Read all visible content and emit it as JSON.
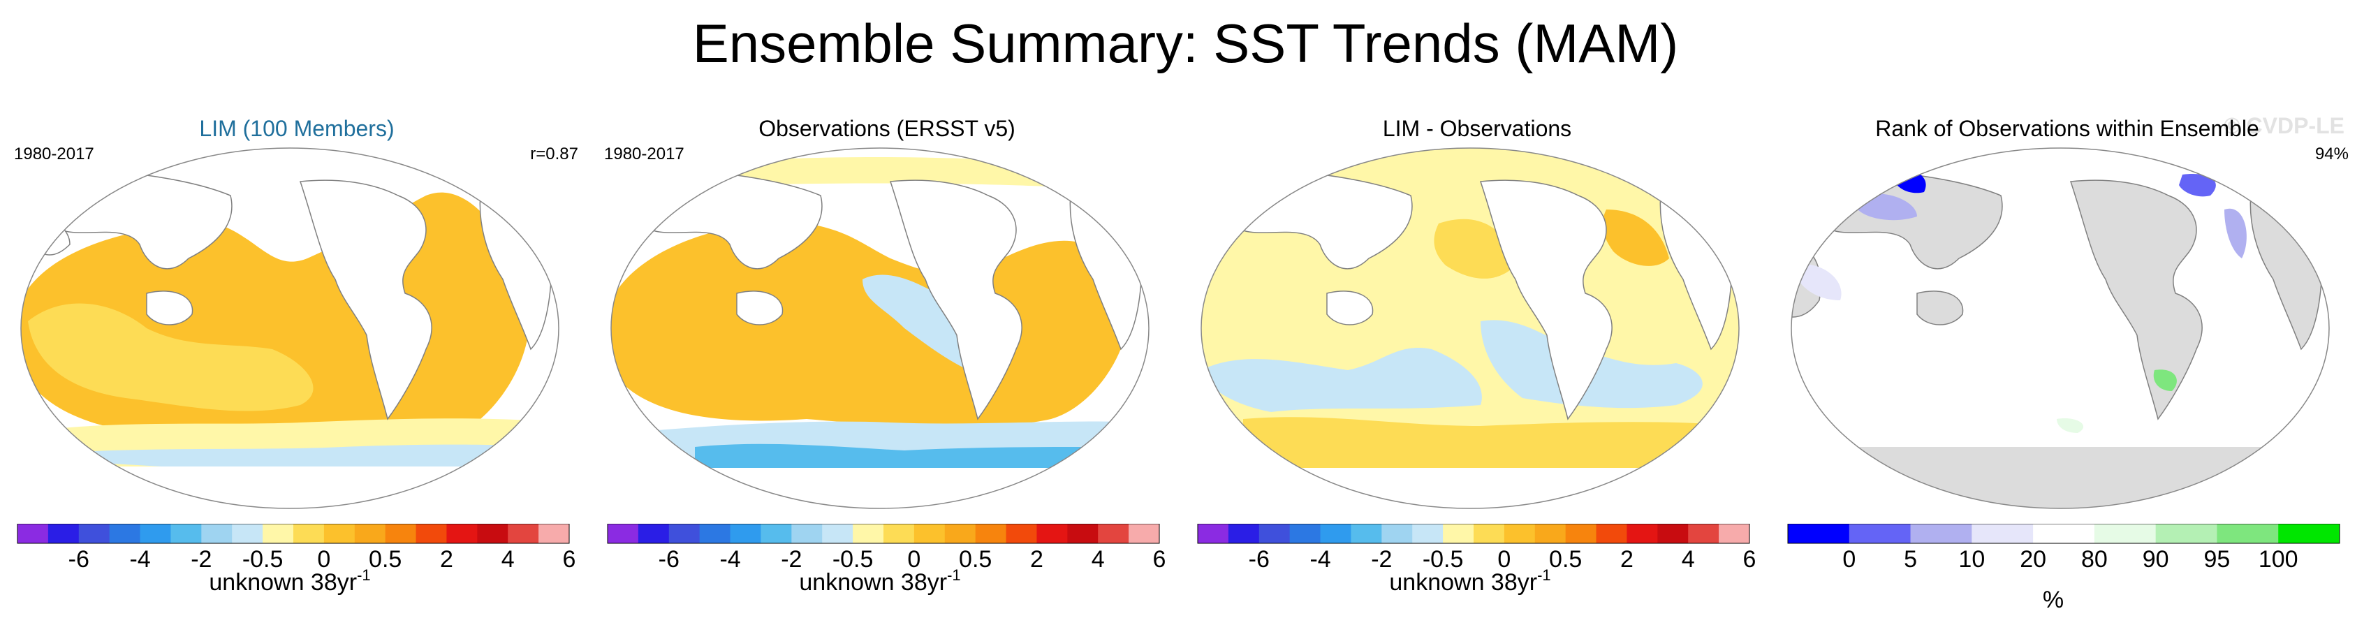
{
  "title": "Ensemble Summary: SST Trends (MAM)",
  "copyright": "© CVDP-LE",
  "colors": {
    "title_blue": "#1f6f9c",
    "land": "#ffffff",
    "rank_land": "#dcdcdc",
    "coast": "#808080",
    "trend_scale": [
      "#8b2be2",
      "#2a1ee6",
      "#3f50dc",
      "#2c78e3",
      "#2f9bee",
      "#56bced",
      "#9fd4f1",
      "#c7e6f7",
      "#fff7a8",
      "#fddc55",
      "#fcc12c",
      "#f9a81b",
      "#f7840d",
      "#f24a0b",
      "#e41513",
      "#c80c10",
      "#e3453f",
      "#f7abab"
    ],
    "rank_scale": [
      "#0000ff",
      "#6464f6",
      "#b0b0f0",
      "#e6e6fa",
      "#ffffff",
      "#e6fbe6",
      "#b4f0b4",
      "#7ee67e",
      "#00e600"
    ]
  },
  "panels": [
    {
      "title": "LIM (100 Members)",
      "period": "1980-2017",
      "stat": "r=0.87",
      "colorbar": {
        "ticks": [
          "-6",
          "-4",
          "-2",
          "-0.5",
          "0",
          "0.5",
          "2",
          "4",
          "6"
        ],
        "units": "unknown 38yr",
        "units_exp": "-1"
      }
    },
    {
      "title": "Observations (ERSST v5)",
      "period": "1980-2017",
      "stat": "",
      "colorbar": {
        "ticks": [
          "-6",
          "-4",
          "-2",
          "-0.5",
          "0",
          "0.5",
          "2",
          "4",
          "6"
        ],
        "units": "unknown 38yr",
        "units_exp": "-1"
      }
    },
    {
      "title": "LIM - Observations",
      "period": "",
      "stat": "",
      "colorbar": {
        "ticks": [
          "-6",
          "-4",
          "-2",
          "-0.5",
          "0",
          "0.5",
          "2",
          "4",
          "6"
        ],
        "units": "unknown 38yr",
        "units_exp": "-1"
      }
    },
    {
      "title": "Rank of Observations within Ensemble",
      "period": "",
      "stat": "94%",
      "colorbar": {
        "ticks": [
          "0",
          "5",
          "10",
          "20",
          "80",
          "90",
          "95",
          "100"
        ],
        "units": "%",
        "units_exp": ""
      }
    }
  ]
}
